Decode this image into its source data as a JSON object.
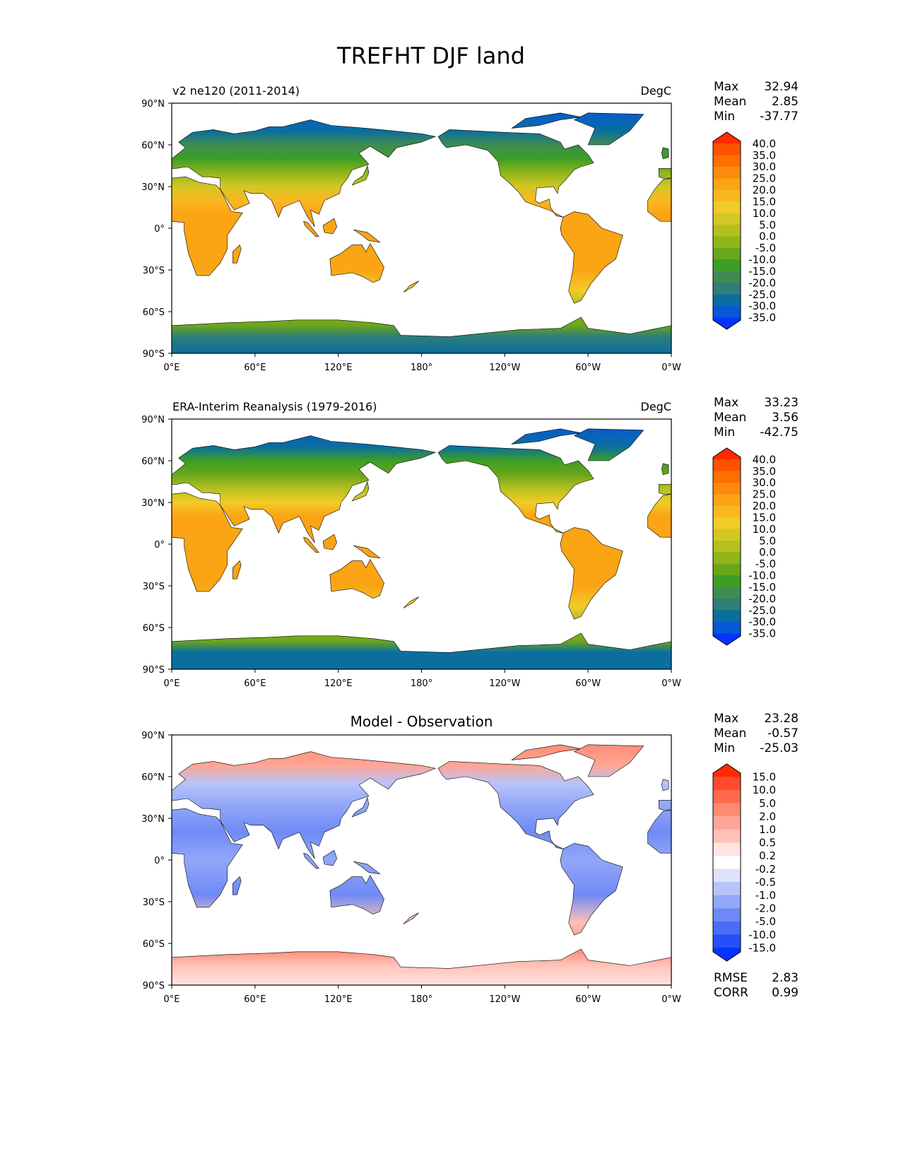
{
  "title": "TREFHT DJF land",
  "x_ticks": [
    "0°E",
    "60°E",
    "120°E",
    "180°",
    "120°W",
    "60°W",
    "0°W"
  ],
  "y_ticks": [
    "90°N",
    "60°N",
    "30°N",
    "0°",
    "30°S",
    "60°S",
    "90°S"
  ],
  "colors": {
    "temp_levels": [
      "#ff2a00",
      "#ff5200",
      "#ff6f00",
      "#fd8a0c",
      "#fba414",
      "#fab820",
      "#f2cb27",
      "#d4c624",
      "#b5c01e",
      "#90b51a",
      "#6aa61a",
      "#3d9e24",
      "#3f8c50",
      "#2f7e78",
      "#0a6e9f",
      "#0559d4",
      "#0533ff"
    ],
    "diff_levels": [
      "#ff2a00",
      "#ff4a2e",
      "#ff6a4c",
      "#ff8a72",
      "#ffa595",
      "#ffc0b6",
      "#ffe4e0",
      "#ffffff",
      "#dde3fc",
      "#b7c4fa",
      "#93a7f8",
      "#6f8af6",
      "#4a6cf6",
      "#2450f8",
      "#0533ff"
    ],
    "coastline": "#000000"
  },
  "chart_data": [
    {
      "type": "heatmap",
      "title": "v2 ne120 (2011-2014)",
      "units": "DegC",
      "stats": {
        "max_label": "Max",
        "max": "32.94",
        "mean_label": "Mean",
        "mean": "2.85",
        "min_label": "Min",
        "min": "-37.77"
      },
      "colorbar_ticks": [
        "40.0",
        "35.0",
        "30.0",
        "25.0",
        "20.0",
        "15.0",
        "10.0",
        "5.0",
        "0.0",
        "-5.0",
        "-10.0",
        "-15.0",
        "-20.0",
        "-25.0",
        "-30.0",
        "-35.0"
      ],
      "xlim": [
        0,
        360
      ],
      "ylim": [
        -90,
        90
      ]
    },
    {
      "type": "heatmap",
      "title": "ERA-Interim Reanalysis (1979-2016)",
      "units": "DegC",
      "stats": {
        "max_label": "Max",
        "max": "33.23",
        "mean_label": "Mean",
        "mean": "3.56",
        "min_label": "Min",
        "min": "-42.75"
      },
      "colorbar_ticks": [
        "40.0",
        "35.0",
        "30.0",
        "25.0",
        "20.0",
        "15.0",
        "10.0",
        "5.0",
        "0.0",
        "-5.0",
        "-10.0",
        "-15.0",
        "-20.0",
        "-25.0",
        "-30.0",
        "-35.0"
      ],
      "xlim": [
        0,
        360
      ],
      "ylim": [
        -90,
        90
      ]
    },
    {
      "type": "heatmap",
      "title": "Model - Observation",
      "units": "",
      "stats": {
        "max_label": "Max",
        "max": "23.28",
        "mean_label": "Mean",
        "mean": "-0.57",
        "min_label": "Min",
        "min": "-25.03"
      },
      "colorbar_ticks": [
        "15.0",
        "10.0",
        "5.0",
        "2.0",
        "1.0",
        "0.5",
        "0.2",
        "-0.2",
        "-0.5",
        "-1.0",
        "-2.0",
        "-5.0",
        "-10.0",
        "-15.0"
      ],
      "metrics": {
        "rmse_label": "RMSE",
        "rmse": "2.83",
        "corr_label": "CORR",
        "corr": "0.99"
      },
      "xlim": [
        0,
        360
      ],
      "ylim": [
        -90,
        90
      ]
    }
  ]
}
